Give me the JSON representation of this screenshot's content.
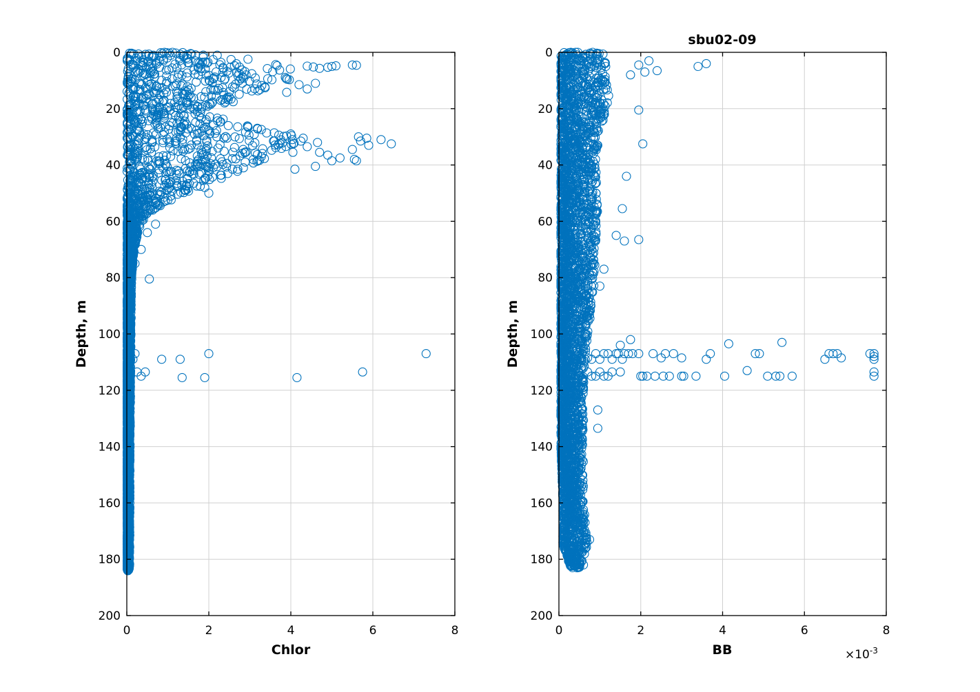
{
  "chart_data": [
    {
      "type": "scatter",
      "title": "",
      "xlabel": "Chlor",
      "ylabel": "Depth, m",
      "xlim": [
        0,
        8
      ],
      "ylim": [
        0,
        200
      ],
      "y_reversed": true,
      "x_ticks": [
        "0",
        "2",
        "4",
        "6",
        "8"
      ],
      "y_ticks": [
        "0",
        "20",
        "40",
        "60",
        "80",
        "100",
        "120",
        "140",
        "160",
        "180",
        "200"
      ],
      "grid": true,
      "marker": "open-circle",
      "color": "#0072BD",
      "series": [
        {
          "profile": [
            {
              "depth": 0,
              "max_x": 1.8
            },
            {
              "depth": 5,
              "max_x": 4.2
            },
            {
              "depth": 10,
              "max_x": 4.0
            },
            {
              "depth": 15,
              "max_x": 3.2
            },
            {
              "depth": 20,
              "max_x": 1.9
            },
            {
              "depth": 25,
              "max_x": 2.6
            },
            {
              "depth": 30,
              "max_x": 4.6
            },
            {
              "depth": 35,
              "max_x": 4.0
            },
            {
              "depth": 40,
              "max_x": 3.0
            },
            {
              "depth": 45,
              "max_x": 2.3
            },
            {
              "depth": 50,
              "max_x": 1.4
            },
            {
              "depth": 55,
              "max_x": 0.75
            },
            {
              "depth": 60,
              "max_x": 0.35
            },
            {
              "depth": 70,
              "max_x": 0.18
            },
            {
              "depth": 80,
              "max_x": 0.12
            },
            {
              "depth": 100,
              "max_x": 0.1
            },
            {
              "depth": 140,
              "max_x": 0.08
            },
            {
              "depth": 184,
              "max_x": 0.07
            }
          ],
          "points": [
            [
              5.5,
              4.5
            ],
            [
              5.6,
              4.6
            ],
            [
              5.1,
              4.8
            ],
            [
              5.0,
              5.0
            ],
            [
              4.9,
              5.3
            ],
            [
              4.7,
              5.7
            ],
            [
              4.55,
              5.2
            ],
            [
              4.4,
              4.9
            ],
            [
              4.6,
              11.0
            ],
            [
              4.2,
              11.5
            ],
            [
              4.4,
              13.0
            ],
            [
              3.9,
              14.2
            ],
            [
              7.3,
              107
            ],
            [
              2.0,
              107
            ],
            [
              0.85,
              109
            ],
            [
              1.3,
              109
            ],
            [
              0.45,
              113.5
            ],
            [
              0.25,
              113.5
            ],
            [
              0.35,
              115
            ],
            [
              1.35,
              115.5
            ],
            [
              1.9,
              115.5
            ],
            [
              4.15,
              115.5
            ],
            [
              5.75,
              113.5
            ],
            [
              0.2,
              107
            ],
            [
              0.15,
              109
            ],
            [
              6.45,
              32.5
            ],
            [
              6.2,
              31
            ],
            [
              5.9,
              33
            ],
            [
              5.85,
              30.5
            ],
            [
              5.65,
              30
            ],
            [
              5.7,
              31.5
            ],
            [
              5.5,
              34.5
            ],
            [
              5.55,
              38
            ],
            [
              5.6,
              38.5
            ],
            [
              5.2,
              37.5
            ],
            [
              5.0,
              38.5
            ],
            [
              4.9,
              36.5
            ],
            [
              4.6,
              40.5
            ],
            [
              4.1,
              41.5
            ],
            [
              4.7,
              35.5
            ],
            [
              4.65,
              32
            ],
            [
              4.4,
              33.5
            ],
            [
              4.3,
              30.5
            ],
            [
              4.0,
              29
            ],
            [
              4.05,
              35.5
            ],
            [
              0.55,
              80.5
            ],
            [
              0.2,
              75
            ],
            [
              0.35,
              70
            ],
            [
              0.7,
              61
            ],
            [
              0.5,
              64
            ],
            [
              2.0,
              50
            ],
            [
              1.9,
              48
            ]
          ]
        }
      ]
    },
    {
      "type": "scatter",
      "title": "sbu02-09",
      "xlabel": "BB",
      "ylabel": "Depth, m",
      "xlim": [
        0,
        0.008
      ],
      "ylim": [
        0,
        200
      ],
      "y_reversed": true,
      "x_ticks": [
        "0",
        "2",
        "4",
        "6",
        "8"
      ],
      "x_exponent": "×10^-3",
      "y_ticks": [
        "0",
        "20",
        "40",
        "60",
        "80",
        "100",
        "120",
        "140",
        "160",
        "180",
        "200"
      ],
      "grid": true,
      "marker": "open-circle",
      "color": "#0072BD",
      "series": [
        {
          "profile": [
            {
              "depth": 0,
              "min_x": 5e-05,
              "max_x": 0.0011
            },
            {
              "depth": 10,
              "min_x": 5e-05,
              "max_x": 0.00125
            },
            {
              "depth": 20,
              "min_x": 5e-05,
              "max_x": 0.0012
            },
            {
              "depth": 30,
              "min_x": 5e-05,
              "max_x": 0.00095
            },
            {
              "depth": 40,
              "min_x": 5e-05,
              "max_x": 0.0009
            },
            {
              "depth": 55,
              "min_x": 5e-05,
              "max_x": 0.00095
            },
            {
              "depth": 70,
              "min_x": 5e-05,
              "max_x": 0.0009
            },
            {
              "depth": 85,
              "min_x": 5e-05,
              "max_x": 0.00085
            },
            {
              "depth": 100,
              "min_x": 5e-05,
              "max_x": 0.0007
            },
            {
              "depth": 120,
              "min_x": 5e-05,
              "max_x": 0.0006
            },
            {
              "depth": 140,
              "min_x": 5e-05,
              "max_x": 0.0006
            },
            {
              "depth": 160,
              "min_x": 0.0001,
              "max_x": 0.0006
            },
            {
              "depth": 175,
              "min_x": 0.0001,
              "max_x": 0.0007
            },
            {
              "depth": 183,
              "min_x": 0.0003,
              "max_x": 0.0005
            }
          ],
          "points": [
            [
              0.0036,
              4
            ],
            [
              0.0034,
              5
            ],
            [
              0.0024,
              6.5
            ],
            [
              0.0022,
              3
            ],
            [
              0.0021,
              7
            ],
            [
              0.00195,
              4.5
            ],
            [
              0.00175,
              8
            ],
            [
              0.00095,
              33
            ],
            [
              0.00205,
              32.5
            ],
            [
              0.00195,
              20.5
            ],
            [
              0.00165,
              44
            ],
            [
              0.00155,
              55.5
            ],
            [
              0.00195,
              66.5
            ],
            [
              0.0016,
              67
            ],
            [
              0.0014,
              65
            ],
            [
              0.0011,
              77
            ],
            [
              0.001,
              83
            ],
            [
              0.00095,
              133.5
            ],
            [
              0.00095,
              127
            ],
            [
              0.0006,
              182
            ],
            [
              0.00075,
              173
            ],
            [
              0.0077,
              107
            ],
            [
              0.0077,
              108
            ],
            [
              0.0077,
              109
            ],
            [
              0.0077,
              113.5
            ],
            [
              0.0077,
              115
            ],
            [
              0.0076,
              107
            ],
            [
              0.0069,
              108.5
            ],
            [
              0.0068,
              107
            ],
            [
              0.0067,
              107
            ],
            [
              0.0066,
              107
            ],
            [
              0.0065,
              109
            ],
            [
              0.0057,
              115
            ],
            [
              0.0054,
              115
            ],
            [
              0.0053,
              115
            ],
            [
              0.00545,
              103
            ],
            [
              0.0051,
              115
            ],
            [
              0.0049,
              107
            ],
            [
              0.0048,
              107
            ],
            [
              0.0046,
              113
            ],
            [
              0.00415,
              103.5
            ],
            [
              0.00405,
              115
            ],
            [
              0.0037,
              107
            ],
            [
              0.0036,
              109
            ],
            [
              0.00335,
              115
            ],
            [
              0.003,
              115
            ],
            [
              0.00305,
              115
            ],
            [
              0.003,
              108.5
            ],
            [
              0.0028,
              107
            ],
            [
              0.0027,
              115
            ],
            [
              0.0026,
              107
            ],
            [
              0.00255,
              115
            ],
            [
              0.0025,
              108.5
            ],
            [
              0.00235,
              115
            ],
            [
              0.0023,
              107
            ],
            [
              0.00215,
              115
            ],
            [
              0.00205,
              115
            ],
            [
              0.002,
              115
            ],
            [
              0.00195,
              107
            ],
            [
              0.0018,
              107
            ],
            [
              0.00175,
              102
            ],
            [
              0.0017,
              107
            ],
            [
              0.0016,
              107
            ],
            [
              0.00155,
              109
            ],
            [
              0.0015,
              113.5
            ],
            [
              0.0015,
              104
            ],
            [
              0.00145,
              107
            ],
            [
              0.0014,
              107
            ],
            [
              0.0013,
              109
            ],
            [
              0.0012,
              107
            ],
            [
              0.0011,
              107
            ],
            [
              0.001,
              109
            ],
            [
              0.0009,
              107
            ],
            [
              0.0008,
              109
            ],
            [
              0.0007,
              108.5
            ],
            [
              0.0013,
              113.5
            ],
            [
              0.0012,
              115
            ],
            [
              0.0011,
              115
            ],
            [
              0.001,
              113.5
            ],
            [
              0.0009,
              115
            ],
            [
              0.0008,
              115
            ],
            [
              0.0007,
              113.5
            ]
          ]
        }
      ]
    }
  ]
}
